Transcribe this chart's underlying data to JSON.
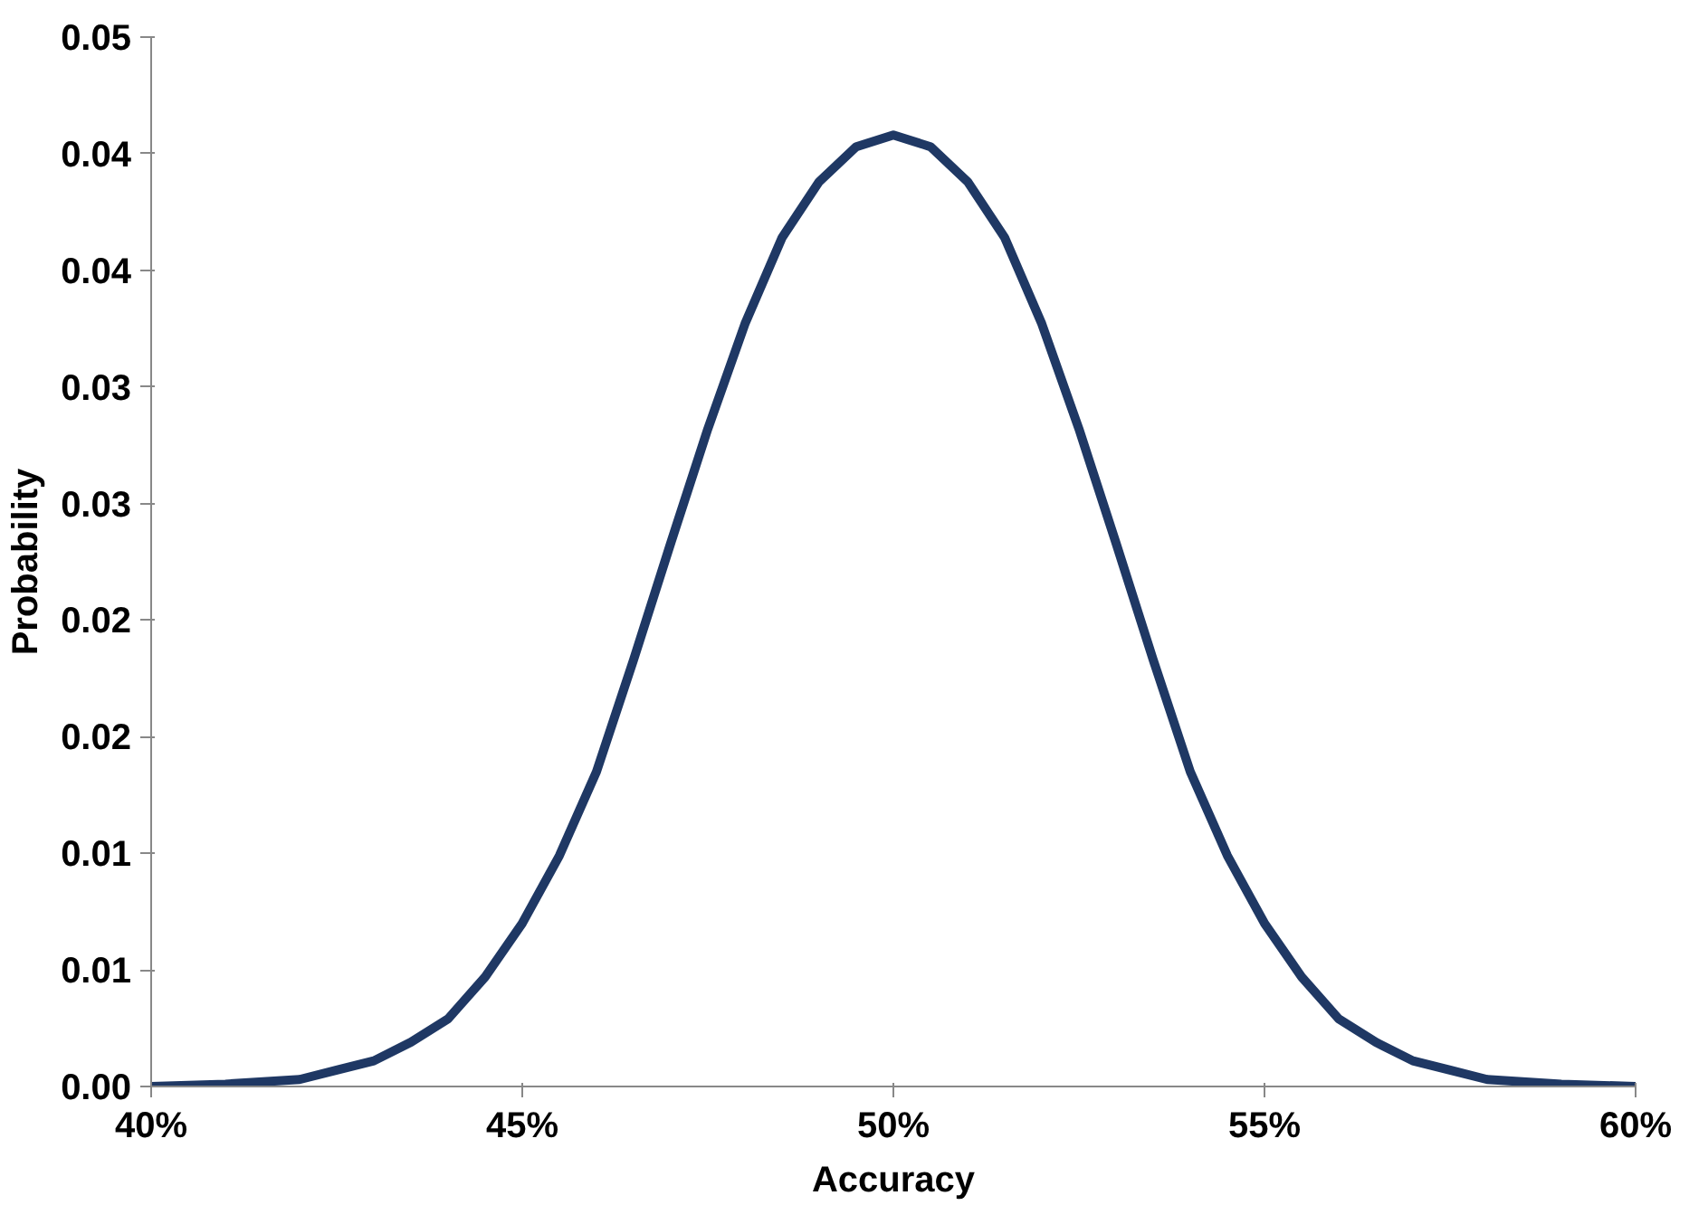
{
  "chart_data": {
    "type": "line",
    "xlabel": "Accuracy",
    "ylabel": "Probability",
    "x": [
      40,
      41,
      42,
      42.5,
      43,
      43.5,
      44,
      44.5,
      45,
      45.5,
      46,
      46.5,
      47,
      47.5,
      48,
      48.5,
      49,
      49.5,
      50,
      50.5,
      51,
      51.5,
      52,
      52.5,
      53,
      53.5,
      54,
      54.5,
      55,
      55.5,
      56,
      56.5,
      57,
      57.5,
      58,
      59,
      60
    ],
    "series": [
      {
        "color": "#1f3864",
        "values": [
          0.0,
          0.0001,
          0.0003,
          0.0007,
          0.0011,
          0.0019,
          0.0029,
          0.0047,
          0.007,
          0.0099,
          0.0135,
          0.0183,
          0.0233,
          0.0282,
          0.0327,
          0.0364,
          0.0388,
          0.0403,
          0.0408,
          0.0403,
          0.0388,
          0.0364,
          0.0327,
          0.0282,
          0.0233,
          0.0183,
          0.0135,
          0.0099,
          0.007,
          0.0047,
          0.0029,
          0.0019,
          0.0011,
          0.0007,
          0.0003,
          0.0001,
          0.0
        ]
      }
    ],
    "xlim": [
      40,
      60
    ],
    "xticks": [
      {
        "value": 40,
        "label": "40%"
      },
      {
        "value": 45,
        "label": "45%"
      },
      {
        "value": 50,
        "label": "50%"
      },
      {
        "value": 55,
        "label": "55%"
      },
      {
        "value": 60,
        "label": "60%"
      }
    ],
    "ylim": [
      0,
      0.045
    ],
    "yticks": [
      {
        "value": 0,
        "label": "0.00"
      },
      {
        "value": 0.005,
        "label": "0.01"
      },
      {
        "value": 0.01,
        "label": "0.01"
      },
      {
        "value": 0.015,
        "label": "0.02"
      },
      {
        "value": 0.02,
        "label": "0.02"
      },
      {
        "value": 0.025,
        "label": "0.03"
      },
      {
        "value": 0.03,
        "label": "0.03"
      },
      {
        "value": 0.035,
        "label": "0.04"
      },
      {
        "value": 0.04,
        "label": "0.04"
      },
      {
        "value": 0.045,
        "label": "0.05"
      }
    ],
    "grid": false,
    "marker": "none",
    "line_style": "solid"
  }
}
